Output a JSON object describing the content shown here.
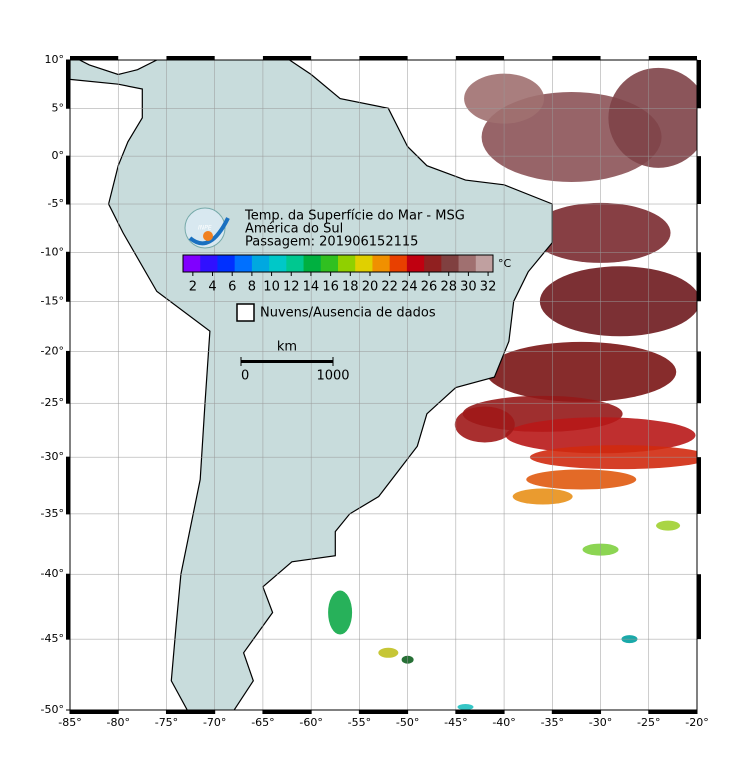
{
  "map": {
    "title": "Temp. da Superfície do Mar - MSG",
    "region": "América do Sul",
    "pass": "Passagem: 201906152115",
    "logo": "INPE",
    "xlim": [
      -85,
      -20
    ],
    "ylim": [
      -50,
      10
    ],
    "lon_ticks": [
      {
        "value": -85,
        "label": "-85°"
      },
      {
        "value": -80,
        "label": "-80°"
      },
      {
        "value": -75,
        "label": "-75°"
      },
      {
        "value": -70,
        "label": "-70°"
      },
      {
        "value": -65,
        "label": "-65°"
      },
      {
        "value": -60,
        "label": "-60°"
      },
      {
        "value": -55,
        "label": "-55°"
      },
      {
        "value": -50,
        "label": "-50°"
      },
      {
        "value": -45,
        "label": "-45°"
      },
      {
        "value": -40,
        "label": "-40°"
      },
      {
        "value": -35,
        "label": "-35°"
      },
      {
        "value": -30,
        "label": "-30°"
      },
      {
        "value": -25,
        "label": "-25°"
      },
      {
        "value": -20,
        "label": "-20°"
      }
    ],
    "lat_ticks": [
      {
        "value": 10,
        "label": "10°"
      },
      {
        "value": 5,
        "label": "5°"
      },
      {
        "value": 0,
        "label": "0°"
      },
      {
        "value": -5,
        "label": "-5°"
      },
      {
        "value": -10,
        "label": "-10°"
      },
      {
        "value": -15,
        "label": "-15°"
      },
      {
        "value": -20,
        "label": "-20°"
      },
      {
        "value": -25,
        "label": "-25°"
      },
      {
        "value": -30,
        "label": "-30°"
      },
      {
        "value": -35,
        "label": "-35°"
      },
      {
        "value": -40,
        "label": "-40°"
      },
      {
        "value": -45,
        "label": "-45°"
      },
      {
        "value": -50,
        "label": "-50°"
      }
    ],
    "colorbar": {
      "unit": "°C",
      "range": [
        1,
        32.5
      ],
      "ticks": [
        2,
        4,
        6,
        8,
        10,
        12,
        14,
        16,
        18,
        20,
        22,
        24,
        26,
        28,
        30,
        32
      ],
      "colors": [
        "#8000ff",
        "#3010ff",
        "#0030ff",
        "#0070ff",
        "#00a8e0",
        "#00c8c8",
        "#00c890",
        "#00b040",
        "#30c020",
        "#90d000",
        "#e0d000",
        "#f09000",
        "#e84000",
        "#c00010",
        "#902020",
        "#804040",
        "#a07070",
        "#c0a0a0"
      ]
    },
    "legend": "Nuvens/Ausencia de dados",
    "scale": {
      "unit": "km",
      "lim": [
        0,
        1000
      ],
      "ticks": [
        0,
        1000
      ]
    }
  }
}
